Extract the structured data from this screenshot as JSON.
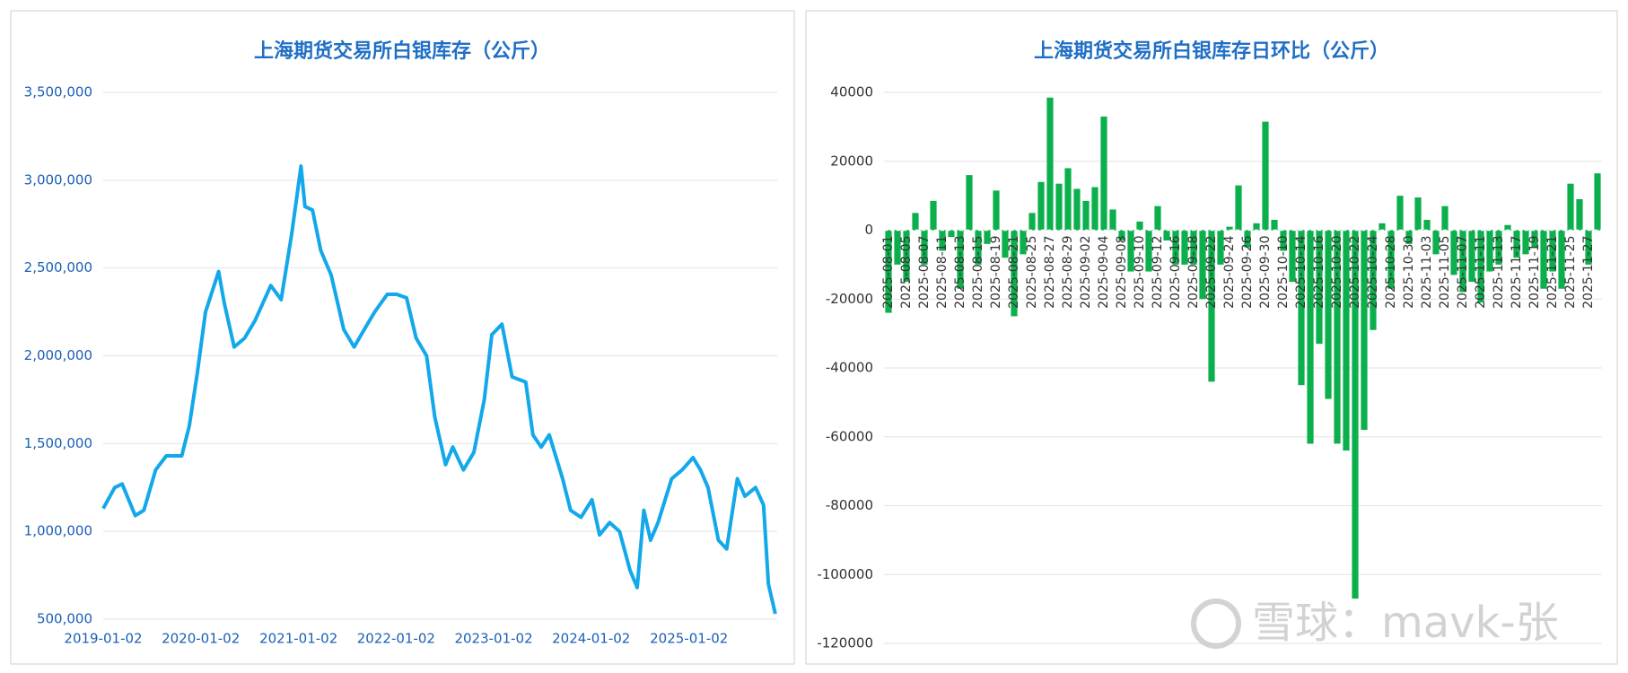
{
  "chart_data": [
    {
      "type": "line",
      "title": "上海期货交易所白银库存（公斤）",
      "color": "#12a8ea",
      "x": [
        "2019-01-02",
        "2019-02-14",
        "2019-03-14",
        "2019-05-02",
        "2019-06-03",
        "2019-07-17",
        "2019-08-26",
        "2019-10-23",
        "2019-11-20",
        "2019-12-20",
        "2020-01-20",
        "2020-03-09",
        "2020-03-30",
        "2020-05-06",
        "2020-06-14",
        "2020-07-23",
        "2020-09-20",
        "2020-10-29",
        "2020-12-08",
        "2021-01-11",
        "2021-01-26",
        "2021-02-23",
        "2021-03-26",
        "2021-05-04",
        "2021-06-20",
        "2021-07-29",
        "2021-09-05",
        "2021-10-14",
        "2021-11-30",
        "2022-01-04",
        "2022-02-10",
        "2022-03-18",
        "2022-04-26",
        "2022-05-27",
        "2022-07-06",
        "2022-08-02",
        "2022-09-11",
        "2022-10-20",
        "2022-11-28",
        "2022-12-26",
        "2023-02-02",
        "2023-03-12",
        "2023-05-02",
        "2023-05-29",
        "2023-06-29",
        "2023-07-29",
        "2023-09-17",
        "2023-10-17",
        "2023-11-25",
        "2024-01-05",
        "2024-02-02",
        "2024-03-11",
        "2024-04-17",
        "2024-05-26",
        "2024-06-22",
        "2024-07-17",
        "2024-08-11",
        "2024-09-08",
        "2024-10-29",
        "2024-12-07",
        "2025-01-17",
        "2025-02-14",
        "2025-03-14",
        "2025-04-22",
        "2025-05-23",
        "2025-07-02",
        "2025-07-30",
        "2025-09-08",
        "2025-10-08",
        "2025-10-26",
        "2025-11-21"
      ],
      "values": [
        1130000,
        1250000,
        1270000,
        1090000,
        1120000,
        1350000,
        1430000,
        1430000,
        1600000,
        1900000,
        2250000,
        2480000,
        2300000,
        2050000,
        2100000,
        2200000,
        2400000,
        2320000,
        2700000,
        3080000,
        2850000,
        2830000,
        2600000,
        2460000,
        2150000,
        2050000,
        2150000,
        2250000,
        2350000,
        2350000,
        2330000,
        2100000,
        2000000,
        1650000,
        1380000,
        1480000,
        1350000,
        1450000,
        1750000,
        2120000,
        2180000,
        1880000,
        1850000,
        1550000,
        1480000,
        1550000,
        1300000,
        1120000,
        1080000,
        1180000,
        980000,
        1050000,
        1000000,
        780000,
        680000,
        1120000,
        950000,
        1050000,
        1300000,
        1350000,
        1420000,
        1350000,
        1250000,
        950000,
        900000,
        1300000,
        1200000,
        1250000,
        1150000,
        700000,
        530000
      ],
      "xlim": [
        "2019-01-02",
        "2025-11-28"
      ],
      "xticks": [
        "2019-01-02",
        "2020-01-02",
        "2021-01-02",
        "2022-01-02",
        "2023-01-02",
        "2024-01-02",
        "2025-01-02"
      ],
      "ylim": [
        500000,
        3500000
      ],
      "yticks": [
        {
          "value": 500000,
          "label": "500,000"
        },
        {
          "value": 1000000,
          "label": "1,000,000"
        },
        {
          "value": 1500000,
          "label": "1,500,000"
        },
        {
          "value": 2000000,
          "label": "2,000,000"
        },
        {
          "value": 2500000,
          "label": "2,500,000"
        },
        {
          "value": 3000000,
          "label": "3,000,000"
        },
        {
          "value": 3500000,
          "label": "3,500,000"
        }
      ],
      "grid": true
    },
    {
      "type": "bar",
      "title": "上海期货交易所白银库存日环比（公斤）",
      "color": "#0bb04c",
      "categories": [
        "2025-08-01",
        null,
        "2025-08-05",
        null,
        "2025-08-07",
        null,
        "2025-08-11",
        null,
        "2025-08-13",
        null,
        "2025-08-15",
        null,
        "2025-08-19",
        null,
        "2025-08-21",
        null,
        "2025-08-25",
        null,
        "2025-08-27",
        null,
        "2025-08-29",
        null,
        "2025-09-02",
        null,
        "2025-09-04",
        null,
        "2025-09-08",
        null,
        "2025-09-10",
        null,
        "2025-09-12",
        null,
        "2025-09-16",
        null,
        "2025-09-18",
        null,
        "2025-09-22",
        null,
        "2025-09-24",
        null,
        "2025-09-26",
        null,
        "2025-09-30",
        null,
        "2025-10-10",
        null,
        "2025-10-14",
        null,
        "2025-10-16",
        null,
        "2025-10-20",
        null,
        "2025-10-22",
        null,
        "2025-10-24",
        null,
        "2025-10-28",
        null,
        "2025-10-30",
        null,
        "2025-11-03",
        null,
        "2025-11-05",
        null,
        "2025-11-07",
        null,
        "2025-11-11",
        null,
        "2025-11-13",
        null,
        "2025-11-17",
        null,
        "2025-11-19",
        null,
        "2025-11-21",
        null,
        "2025-11-25",
        null,
        "2025-11-27",
        null
      ],
      "values": [
        -24000,
        -10000,
        -15000,
        5000,
        -10000,
        8500,
        -6000,
        -2000,
        -17000,
        16000,
        -10000,
        -4000,
        11500,
        -8000,
        -25000,
        -7000,
        5000,
        14000,
        38500,
        13500,
        18000,
        12000,
        8500,
        12500,
        33000,
        6000,
        -3000,
        -12000,
        2500,
        -12000,
        7000,
        -3000,
        -10000,
        -10000,
        -10000,
        -20000,
        -44000,
        -10000,
        1000,
        13000,
        -5000,
        2000,
        31500,
        3000,
        -6000,
        -15000,
        -45000,
        -62000,
        -33000,
        -49000,
        -62000,
        -64000,
        -107000,
        -58000,
        -29000,
        2000,
        -17000,
        10000,
        -4000,
        9500,
        3000,
        -7000,
        7000,
        -13000,
        -18000,
        -15000,
        -21000,
        -12000,
        -10000,
        1500,
        -8000,
        -7000,
        -5000,
        -17000,
        -12000,
        -17000,
        13500,
        9000,
        -10000,
        16500
      ],
      "ylim": [
        -120000,
        40000
      ],
      "yticks": [
        -120000,
        -100000,
        -80000,
        -60000,
        -40000,
        -20000,
        0,
        20000,
        40000
      ],
      "grid": true
    }
  ],
  "watermark": "雪球：mavk-张"
}
